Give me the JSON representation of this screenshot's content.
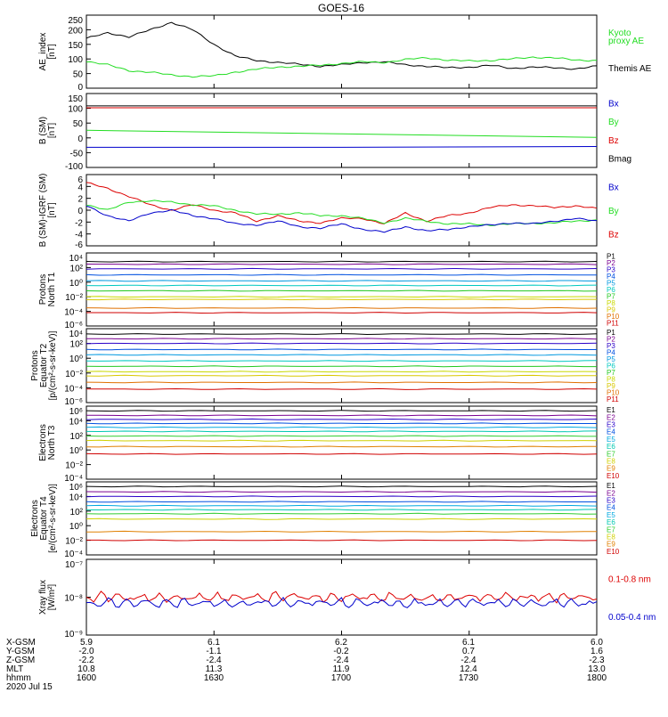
{
  "title": "GOES-16",
  "colors": {
    "black": "#000000",
    "green": "#22dd22",
    "red": "#dd0000",
    "blue": "#0000cc"
  },
  "panels": [
    {
      "id": "ae",
      "ylabel": [
        "AE_index",
        "[nT]"
      ],
      "ticks": [
        "250",
        "200",
        "150",
        "100",
        "50",
        "0"
      ],
      "legend": [
        {
          "text": "Kyoto",
          "color": "#22dd22"
        },
        {
          "text": "proxy AE",
          "color": "#22dd22"
        },
        {
          "text": "Themis AE",
          "color": "#000000"
        }
      ]
    },
    {
      "id": "bsm",
      "ylabel": [
        "B (SM)",
        "[nT]"
      ],
      "ticks": [
        "150",
        "100",
        "50",
        "0",
        "-50",
        "-100"
      ],
      "legend": [
        {
          "text": "Bx",
          "color": "#0000cc"
        },
        {
          "text": "By",
          "color": "#22dd22"
        },
        {
          "text": "Bz",
          "color": "#dd0000"
        },
        {
          "text": "Bmag",
          "color": "#000000"
        }
      ]
    },
    {
      "id": "bigrf",
      "ylabel": [
        "B (SM)-IGRF (SM)",
        "[nT]"
      ],
      "ticks": [
        "6",
        "4",
        "2",
        "0",
        "-2",
        "-4",
        "-6"
      ],
      "legend": [
        {
          "text": "Bx",
          "color": "#0000cc"
        },
        {
          "text": "By",
          "color": "#22dd22"
        },
        {
          "text": "Bz",
          "color": "#dd0000"
        }
      ]
    },
    {
      "id": "protons_t1",
      "ylabel": [
        "Protons",
        "North T1"
      ],
      "ticks": [
        "10⁴",
        "10²",
        "10⁰",
        "10⁻²",
        "10⁻⁴",
        "10⁻⁶"
      ],
      "legend": [
        "P1",
        "P2",
        "P3",
        "P4",
        "P5",
        "P6",
        "P7",
        "P8",
        "P9",
        "P10",
        "P11"
      ]
    },
    {
      "id": "protons_t2",
      "ylabel": [
        "Protons",
        "Equator T2",
        "[p/(cm²-s-sr-keV)]"
      ],
      "ticks": [
        "10⁴",
        "10²",
        "10⁰",
        "10⁻²",
        "10⁻⁴",
        "10⁻⁶"
      ],
      "legend": [
        "P1",
        "P2",
        "P3",
        "P4",
        "P5",
        "P6",
        "P7",
        "P8",
        "P9",
        "P10",
        "P11"
      ]
    },
    {
      "id": "electrons_t3",
      "ylabel": [
        "Electrons",
        "North T3"
      ],
      "ticks": [
        "10⁶",
        "10⁴",
        "10²",
        "10⁰",
        "10⁻²",
        "10⁻⁴"
      ],
      "legend": [
        "E1",
        "E2",
        "E3",
        "E4",
        "E5",
        "E6",
        "E7",
        "E8",
        "E9",
        "E10"
      ]
    },
    {
      "id": "electrons_t4",
      "ylabel": [
        "Electrons",
        "Equator T4",
        "[e/(cm²-s-sr-keV)]"
      ],
      "ticks": [
        "10⁶",
        "10⁴",
        "10²",
        "10⁰",
        "10⁻²",
        "10⁻⁴"
      ],
      "legend": [
        "E1",
        "E2",
        "E3",
        "E4",
        "E5",
        "E6",
        "E7",
        "E8",
        "E9",
        "E10"
      ]
    },
    {
      "id": "xray",
      "ylabel": [
        "Xray flux",
        "[W/m²]"
      ],
      "ticks": [
        "10⁻⁷",
        "10⁻⁸",
        "10⁻⁹"
      ],
      "legend": [
        {
          "text": "0.1-0.8 nm",
          "color": "#dd0000"
        },
        {
          "text": "0.05-0.4 nm",
          "color": "#0000cc"
        }
      ]
    }
  ],
  "channel_colors_p": [
    "#000000",
    "#7a0090",
    "#2a00c8",
    "#0050e0",
    "#0098e0",
    "#00c8c0",
    "#22c820",
    "#c8d800",
    "#d8c800",
    "#e07000",
    "#d00000"
  ],
  "channel_colors_e": [
    "#000000",
    "#7a0090",
    "#2a00c8",
    "#0050e0",
    "#00a8e0",
    "#00c8b0",
    "#30cc30",
    "#d0d000",
    "#e08000",
    "#d00000"
  ],
  "footer": {
    "row_labels": [
      "X-GSM",
      "Y-GSM",
      "Z-GSM",
      "MLT",
      "hhmm",
      "2020 Jul 15"
    ],
    "columns": [
      [
        "5.9",
        "-2.0",
        "-2.2",
        "10.8",
        "1600"
      ],
      [
        "6.1",
        "-1.1",
        "-2.4",
        "11.3",
        "1630"
      ],
      [
        "6.2",
        "-0.2",
        "-2.4",
        "11.9",
        "1700"
      ],
      [
        "6.1",
        "0.7",
        "-2.4",
        "12.4",
        "1730"
      ],
      [
        "6.0",
        "1.6",
        "-2.3",
        "13.0",
        "1800"
      ]
    ]
  },
  "chart_data": {
    "type": "line",
    "title": "GOES-16",
    "x": {
      "label": "hhmm",
      "ticks": [
        "1600",
        "1630",
        "1700",
        "1730",
        "1800"
      ],
      "range": [
        "1600",
        "1800"
      ]
    },
    "panels": [
      {
        "id": "ae",
        "ylim": [
          0,
          250
        ],
        "series": [
          {
            "name": "Themis AE",
            "color": "#000000",
            "x": [
              "1600",
              "1605",
              "1610",
              "1615",
              "1620",
              "1625",
              "1630",
              "1635",
              "1640",
              "1645",
              "1650",
              "1655",
              "1700",
              "1705",
              "1710",
              "1715",
              "1720",
              "1725",
              "1730",
              "1735",
              "1740",
              "1745",
              "1750",
              "1755",
              "1800"
            ],
            "values": [
              170,
              190,
              175,
              200,
              225,
              200,
              150,
              110,
              95,
              88,
              82,
              75,
              80,
              88,
              90,
              80,
              75,
              70,
              72,
              78,
              68,
              72,
              70,
              66,
              75
            ]
          },
          {
            "name": "Kyoto proxy AE",
            "color": "#22dd22",
            "x": [
              "1600",
              "1605",
              "1610",
              "1615",
              "1620",
              "1625",
              "1630",
              "1635",
              "1640",
              "1645",
              "1650",
              "1655",
              "1700",
              "1705",
              "1710",
              "1715",
              "1720",
              "1725",
              "1730",
              "1735",
              "1740",
              "1745",
              "1750",
              "1755",
              "1800"
            ],
            "values": [
              92,
              80,
              60,
              55,
              45,
              40,
              42,
              55,
              65,
              72,
              75,
              78,
              85,
              90,
              88,
              98,
              104,
              96,
              93,
              95,
              100,
              106,
              104,
              96,
              95
            ]
          }
        ]
      },
      {
        "id": "bsm",
        "ylim": [
          -125,
          150
        ],
        "series": [
          {
            "name": "Bmag",
            "color": "#000000",
            "x": [
              "1600",
              "1700",
              "1800"
            ],
            "values": [
              104,
              104,
              104
            ]
          },
          {
            "name": "Bz",
            "color": "#dd0000",
            "x": [
              "1600",
              "1700",
              "1800"
            ],
            "values": [
              97,
              97,
              97
            ]
          },
          {
            "name": "By",
            "color": "#22dd22",
            "x": [
              "1600",
              "1700",
              "1800"
            ],
            "values": [
              13,
              0,
              -13
            ]
          },
          {
            "name": "Bx",
            "color": "#0000cc",
            "x": [
              "1600",
              "1700",
              "1800"
            ],
            "values": [
              -50,
              -50,
              -47
            ]
          }
        ]
      },
      {
        "id": "bigrf",
        "ylim": [
          -7,
          6
        ],
        "series": [
          {
            "name": "Bz",
            "color": "#dd0000",
            "x": [
              "1600",
              "1605",
              "1610",
              "1615",
              "1620",
              "1625",
              "1630",
              "1635",
              "1640",
              "1645",
              "1650",
              "1655",
              "1700",
              "1705",
              "1710",
              "1715",
              "1720",
              "1725",
              "1730",
              "1735",
              "1740",
              "1745",
              "1750",
              "1755",
              "1800"
            ],
            "values": [
              4.5,
              3.5,
              2.0,
              0.5,
              -0.5,
              0.5,
              -0.5,
              -1.0,
              -2.5,
              -1.5,
              -2.5,
              -2.8,
              -2.0,
              -2.0,
              -3.0,
              -1.0,
              -2.5,
              -1.5,
              -1.0,
              0.0,
              0.5,
              0.3,
              0.0,
              0.3,
              -0.2
            ]
          },
          {
            "name": "By",
            "color": "#22dd22",
            "x": [
              "1600",
              "1605",
              "1610",
              "1615",
              "1620",
              "1625",
              "1630",
              "1635",
              "1640",
              "1645",
              "1650",
              "1655",
              "1700",
              "1705",
              "1710",
              "1715",
              "1720",
              "1725",
              "1730",
              "1735",
              "1740",
              "1745",
              "1750",
              "1755",
              "1800"
            ],
            "values": [
              0.5,
              -0.5,
              1.0,
              1.2,
              1.0,
              0.5,
              0.3,
              -0.5,
              -1.2,
              -1.2,
              -1.0,
              -1.5,
              -1.5,
              -2.0,
              -2.8,
              -2.0,
              -2.5,
              -3.0,
              -3.0,
              -3.2,
              -3.0,
              -2.9,
              -2.8,
              -2.5,
              -2.3
            ]
          },
          {
            "name": "Bx",
            "color": "#0000cc",
            "x": [
              "1600",
              "1605",
              "1610",
              "1615",
              "1620",
              "1625",
              "1630",
              "1635",
              "1640",
              "1645",
              "1650",
              "1655",
              "1700",
              "1705",
              "1710",
              "1715",
              "1720",
              "1725",
              "1730",
              "1735",
              "1740",
              "1745",
              "1750",
              "1755",
              "1800"
            ],
            "values": [
              0.3,
              -1.5,
              -2.5,
              -1.0,
              -0.5,
              -1.5,
              -2.0,
              -3.0,
              -3.2,
              -2.5,
              -3.5,
              -3.8,
              -3.0,
              -4.0,
              -4.5,
              -3.5,
              -4.3,
              -4.0,
              -3.5,
              -3.2,
              -2.8,
              -3.0,
              -2.5,
              -2.0,
              -2.5
            ]
          }
        ]
      },
      {
        "id": "protons_t1",
        "scale": "log",
        "ylim_exp": [
          -7,
          4
        ],
        "series_exp": [
          {
            "name": "P1",
            "value": 2.7
          },
          {
            "name": "P2",
            "value": 2.3
          },
          {
            "name": "P3",
            "value": 1.6
          },
          {
            "name": "P4",
            "value": 0.7
          },
          {
            "name": "P5",
            "value": -0.2
          },
          {
            "name": "P6",
            "value": -0.9
          },
          {
            "name": "P7",
            "value": -1.7
          },
          {
            "name": "P8",
            "value": -2.6
          },
          {
            "name": "P9",
            "value": -3.0
          },
          {
            "name": "P10",
            "value": -4.3
          },
          {
            "name": "P11",
            "value": -5.0
          }
        ]
      },
      {
        "id": "protons_t2",
        "scale": "log",
        "ylim_exp": [
          -7,
          4
        ],
        "series_exp": [
          {
            "name": "P1",
            "value": 3.2
          },
          {
            "name": "P2",
            "value": 2.5
          },
          {
            "name": "P3",
            "value": 1.8
          },
          {
            "name": "P4",
            "value": 0.9
          },
          {
            "name": "P5",
            "value": 0.1
          },
          {
            "name": "P6",
            "value": -0.8
          },
          {
            "name": "P7",
            "value": -1.6
          },
          {
            "name": "P8",
            "value": -2.4
          },
          {
            "name": "P9",
            "value": -3.0
          },
          {
            "name": "P10",
            "value": -4.0
          },
          {
            "name": "P11",
            "value": -5.0
          }
        ]
      },
      {
        "id": "electrons_t3",
        "scale": "log",
        "ylim_exp": [
          -5,
          6
        ],
        "series_exp": [
          {
            "name": "E1",
            "value": 5.3
          },
          {
            "name": "E2",
            "value": 4.6
          },
          {
            "name": "E3",
            "value": 4.0
          },
          {
            "name": "E4",
            "value": 3.4
          },
          {
            "name": "E5",
            "value": 2.8
          },
          {
            "name": "E6",
            "value": 2.2
          },
          {
            "name": "E7",
            "value": 1.5
          },
          {
            "name": "E8",
            "value": 0.8
          },
          {
            "name": "E9",
            "value": -0.1
          },
          {
            "name": "E10",
            "value": -1.2
          }
        ]
      },
      {
        "id": "electrons_t4",
        "scale": "log",
        "ylim_exp": [
          -5,
          6
        ],
        "series_exp": [
          {
            "name": "E1",
            "value": 5.3
          },
          {
            "name": "E2",
            "value": 4.5
          },
          {
            "name": "E3",
            "value": 3.8
          },
          {
            "name": "E4",
            "value": 3.0
          },
          {
            "name": "E5",
            "value": 2.4
          },
          {
            "name": "E6",
            "value": 1.8
          },
          {
            "name": "E7",
            "value": 1.2
          },
          {
            "name": "E8",
            "value": 0.4
          },
          {
            "name": "E9",
            "value": -1.5
          },
          {
            "name": "E10",
            "value": -2.8
          }
        ]
      },
      {
        "id": "xray",
        "scale": "log",
        "ylim_exp": [
          -9.2,
          -6.7
        ],
        "series_exp": [
          {
            "name": "0.1-0.8 nm",
            "value": -7.95
          },
          {
            "name": "0.05-0.4 nm",
            "value": -8.15
          }
        ]
      }
    ]
  }
}
